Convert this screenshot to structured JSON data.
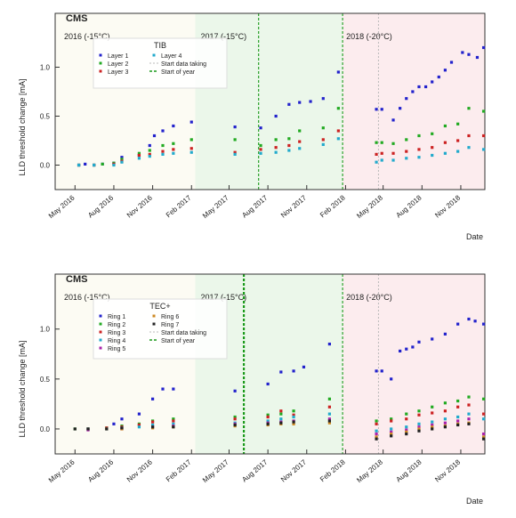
{
  "colors": {
    "period_2016_bg": "#fcfbf3",
    "period_2017_bg": "#ebf7ea",
    "period_2018_bg": "#fcecee",
    "frame": "#333333",
    "fit_line_dash": "#bbbbbb",
    "start_year_line": "#1a9a1a",
    "era_end_line": "#333333"
  },
  "chart_data": [
    {
      "id": "tib",
      "type": "scatter",
      "experiment_label": "CMS",
      "xlabel": "Date",
      "ylabel": "LLD threshold change [mA]",
      "ylim": [
        -0.25,
        1.55
      ],
      "yticks": [
        0.0,
        0.5,
        1.0
      ],
      "ytick_labels": [
        "0.0",
        "0.5",
        "1.0"
      ],
      "xlim": [
        "2016-03-15",
        "2018-12-28"
      ],
      "xticks": [
        "2016-05-01",
        "2016-08-01",
        "2016-11-01",
        "2017-02-01",
        "2017-05-01",
        "2017-08-01",
        "2017-11-01",
        "2018-02-01",
        "2018-05-01",
        "2018-08-01",
        "2018-11-01"
      ],
      "xtick_labels": [
        "May 2016",
        "Aug 2016",
        "Nov 2016",
        "Feb 2017",
        "May 2017",
        "Aug 2017",
        "Nov 2017",
        "Feb 2018",
        "May 2018",
        "Aug 2018",
        "Nov 2018"
      ],
      "periods": [
        {
          "label": "2016 (-15°C)",
          "start": "2016-03-15",
          "end": "2017-02-10"
        },
        {
          "label": "2017 (-15°C)",
          "start": "2017-02-10",
          "end": "2018-01-25"
        },
        {
          "label": "2018 (-20°C)",
          "start": "2018-01-25",
          "end": "2018-12-28"
        }
      ],
      "vlines": [
        {
          "date": "2017-07-10",
          "style": "green-dash"
        },
        {
          "date": "2018-01-25",
          "style": "green-dash"
        }
      ],
      "legend": {
        "title": "TIB",
        "entries": [
          "Layer 1",
          "Layer 2",
          "Layer 3",
          "Layer 4",
          "Start data taking",
          "Start of year"
        ],
        "placement": "top-left"
      },
      "series": [
        {
          "name": "Layer 1",
          "color": "#2222cc",
          "x": [
            "2016-05-10",
            "2016-05-25",
            "2016-06-15",
            "2016-07-05",
            "2016-08-01",
            "2016-08-20",
            "2016-09-30",
            "2016-10-25",
            "2016-11-05",
            "2016-11-25",
            "2016-12-20",
            "2017-02-01",
            "2017-05-15",
            "2017-07-15",
            "2017-08-20",
            "2017-09-20",
            "2017-10-15",
            "2017-11-10",
            "2017-12-10",
            "2018-01-15",
            "2018-04-15",
            "2018-04-28",
            "2018-05-25",
            "2018-06-10",
            "2018-06-25",
            "2018-07-10",
            "2018-07-25",
            "2018-08-10",
            "2018-08-25",
            "2018-09-10",
            "2018-09-25",
            "2018-10-10",
            "2018-11-05",
            "2018-11-20",
            "2018-12-10",
            "2018-12-25"
          ],
          "values": [
            0.0,
            0.01,
            0.0,
            0.01,
            0.02,
            0.08,
            0.1,
            0.2,
            0.3,
            0.35,
            0.4,
            0.44,
            0.39,
            0.38,
            0.5,
            0.62,
            0.64,
            0.65,
            0.68,
            0.95,
            0.57,
            0.57,
            0.46,
            0.58,
            0.68,
            0.75,
            0.8,
            0.8,
            0.85,
            0.9,
            0.97,
            1.05,
            1.15,
            1.13,
            1.1,
            1.2
          ]
        },
        {
          "name": "Layer 2",
          "color": "#22aa22",
          "x": [
            "2016-05-10",
            "2016-06-15",
            "2016-07-05",
            "2016-08-01",
            "2016-08-20",
            "2016-09-30",
            "2016-10-25",
            "2016-11-25",
            "2016-12-20",
            "2017-02-01",
            "2017-05-15",
            "2017-07-15",
            "2017-08-20",
            "2017-09-20",
            "2017-10-15",
            "2017-12-10",
            "2018-01-15",
            "2018-04-15",
            "2018-04-28",
            "2018-05-25",
            "2018-06-25",
            "2018-07-25",
            "2018-08-25",
            "2018-09-25",
            "2018-10-25",
            "2018-11-20",
            "2018-12-25"
          ],
          "values": [
            0.0,
            0.0,
            0.01,
            0.02,
            0.06,
            0.12,
            0.15,
            0.2,
            0.22,
            0.26,
            0.26,
            0.2,
            0.26,
            0.27,
            0.35,
            0.38,
            0.58,
            0.23,
            0.23,
            0.22,
            0.26,
            0.3,
            0.32,
            0.4,
            0.42,
            0.58,
            0.55
          ]
        },
        {
          "name": "Layer 3",
          "color": "#cc2222",
          "x": [
            "2016-05-10",
            "2016-06-15",
            "2016-08-01",
            "2016-08-20",
            "2016-09-30",
            "2016-10-25",
            "2016-11-25",
            "2016-12-20",
            "2017-02-01",
            "2017-05-15",
            "2017-07-15",
            "2017-08-20",
            "2017-09-20",
            "2017-10-15",
            "2017-12-10",
            "2018-01-15",
            "2018-04-15",
            "2018-04-28",
            "2018-05-25",
            "2018-06-25",
            "2018-07-25",
            "2018-08-25",
            "2018-09-25",
            "2018-10-25",
            "2018-11-20",
            "2018-12-25"
          ],
          "values": [
            0.0,
            0.0,
            0.01,
            0.04,
            0.1,
            0.11,
            0.14,
            0.16,
            0.17,
            0.13,
            0.16,
            0.18,
            0.2,
            0.24,
            0.26,
            0.35,
            0.11,
            0.12,
            0.12,
            0.14,
            0.16,
            0.18,
            0.23,
            0.25,
            0.3,
            0.3
          ]
        },
        {
          "name": "Layer 4",
          "color": "#22aacc",
          "x": [
            "2016-05-10",
            "2016-06-15",
            "2016-08-01",
            "2016-08-20",
            "2016-09-30",
            "2016-10-25",
            "2016-11-25",
            "2016-12-20",
            "2017-02-01",
            "2017-05-15",
            "2017-07-15",
            "2017-08-20",
            "2017-09-20",
            "2017-10-15",
            "2017-12-10",
            "2018-01-15",
            "2018-04-15",
            "2018-04-28",
            "2018-05-25",
            "2018-06-25",
            "2018-07-25",
            "2018-08-25",
            "2018-09-25",
            "2018-10-25",
            "2018-11-20",
            "2018-12-25"
          ],
          "values": [
            0.0,
            0.0,
            0.0,
            0.03,
            0.07,
            0.09,
            0.11,
            0.12,
            0.13,
            0.11,
            0.12,
            0.13,
            0.15,
            0.17,
            0.21,
            0.27,
            0.03,
            0.05,
            0.05,
            0.07,
            0.08,
            0.1,
            0.12,
            0.14,
            0.18,
            0.16
          ]
        }
      ]
    },
    {
      "id": "tec",
      "type": "scatter",
      "experiment_label": "CMS",
      "xlabel": "Date",
      "ylabel": "LLD threshold change [mA]",
      "ylim": [
        -0.25,
        1.55
      ],
      "yticks": [
        0.0,
        0.5,
        1.0
      ],
      "ytick_labels": [
        "0.0",
        "0.5",
        "1.0"
      ],
      "xlim": [
        "2016-03-15",
        "2018-12-28"
      ],
      "xticks": [
        "2016-05-01",
        "2016-08-01",
        "2016-11-01",
        "2017-02-01",
        "2017-05-01",
        "2017-08-01",
        "2017-11-01",
        "2018-02-01",
        "2018-05-01",
        "2018-08-01",
        "2018-11-01"
      ],
      "xtick_labels": [
        "May 2016",
        "Aug 2016",
        "Nov 2016",
        "Feb 2017",
        "May 2017",
        "Aug 2017",
        "Nov 2017",
        "Feb 2018",
        "May 2018",
        "Aug 2018",
        "Nov 2018"
      ],
      "periods": [
        {
          "label": "2016 (-15°C)",
          "start": "2016-03-15",
          "end": "2017-02-10"
        },
        {
          "label": "2017 (-15°C)",
          "start": "2017-02-10",
          "end": "2018-01-25"
        },
        {
          "label": "2018 (-20°C)",
          "start": "2018-01-25",
          "end": "2018-12-28"
        }
      ],
      "vlines": [
        {
          "date": "2017-06-05",
          "style": "green-dash"
        },
        {
          "date": "2018-01-25",
          "style": "green-dash"
        }
      ],
      "legend": {
        "title": "TEC+",
        "entries": [
          "Ring 1",
          "Ring 2",
          "Ring 3",
          "Ring 4",
          "Ring 5",
          "Ring 6",
          "Ring 7",
          "Start data taking",
          "Start of year"
        ],
        "placement": "top-left"
      },
      "series": [
        {
          "name": "Ring 1",
          "color": "#2222cc",
          "x": [
            "2016-08-01",
            "2016-08-20",
            "2016-09-30",
            "2016-11-01",
            "2016-11-25",
            "2016-12-20",
            "2017-05-15",
            "2017-08-01",
            "2017-09-01",
            "2017-10-01",
            "2017-10-25",
            "2017-12-25",
            "2018-04-15",
            "2018-04-28",
            "2018-05-20",
            "2018-06-10",
            "2018-06-25",
            "2018-07-10",
            "2018-07-25",
            "2018-08-25",
            "2018-09-25",
            "2018-10-25",
            "2018-11-20",
            "2018-12-05",
            "2018-12-25"
          ],
          "values": [
            0.05,
            0.1,
            0.15,
            0.3,
            0.4,
            0.4,
            0.38,
            0.45,
            0.57,
            0.58,
            0.62,
            0.85,
            0.58,
            0.58,
            0.5,
            0.78,
            0.8,
            0.82,
            0.87,
            0.9,
            0.95,
            1.05,
            1.1,
            1.08,
            1.05
          ]
        },
        {
          "name": "Ring 2",
          "color": "#22aa22",
          "x": [
            "2016-05-01",
            "2016-06-01",
            "2016-07-15",
            "2016-08-20",
            "2016-09-30",
            "2016-11-01",
            "2016-12-20",
            "2017-05-15",
            "2017-08-01",
            "2017-09-01",
            "2017-10-01",
            "2017-12-25",
            "2018-04-15",
            "2018-05-20",
            "2018-06-25",
            "2018-07-25",
            "2018-08-25",
            "2018-09-25",
            "2018-10-25",
            "2018-11-20",
            "2018-12-25"
          ],
          "values": [
            0.0,
            0.0,
            0.01,
            0.03,
            0.05,
            0.08,
            0.1,
            0.12,
            0.14,
            0.15,
            0.18,
            0.3,
            0.08,
            0.1,
            0.15,
            0.18,
            0.22,
            0.26,
            0.28,
            0.32,
            0.3
          ]
        },
        {
          "name": "Ring 3",
          "color": "#cc2222",
          "x": [
            "2016-06-01",
            "2016-07-15",
            "2016-08-20",
            "2016-09-30",
            "2016-11-01",
            "2016-12-20",
            "2017-05-15",
            "2017-08-01",
            "2017-09-01",
            "2017-10-01",
            "2017-12-25",
            "2018-04-15",
            "2018-05-20",
            "2018-06-25",
            "2018-07-25",
            "2018-08-25",
            "2018-09-25",
            "2018-10-25",
            "2018-11-20",
            "2018-12-25"
          ],
          "values": [
            0.0,
            0.01,
            0.02,
            0.04,
            0.07,
            0.08,
            0.1,
            0.12,
            0.18,
            0.14,
            0.22,
            0.05,
            0.08,
            0.1,
            0.14,
            0.16,
            0.18,
            0.22,
            0.24,
            0.15
          ]
        },
        {
          "name": "Ring 4",
          "color": "#22aacc",
          "x": [
            "2016-06-01",
            "2016-07-15",
            "2016-08-20",
            "2016-09-30",
            "2016-11-01",
            "2016-12-20",
            "2017-05-15",
            "2017-08-01",
            "2017-09-01",
            "2017-10-01",
            "2017-12-25",
            "2018-04-15",
            "2018-05-20",
            "2018-06-25",
            "2018-07-25",
            "2018-08-25",
            "2018-09-25",
            "2018-10-25",
            "2018-11-20",
            "2018-12-25"
          ],
          "values": [
            0.0,
            0.0,
            0.01,
            0.02,
            0.04,
            0.05,
            0.06,
            0.08,
            0.1,
            0.12,
            0.15,
            -0.02,
            0.0,
            0.02,
            0.05,
            0.07,
            0.1,
            0.12,
            0.15,
            0.1
          ]
        },
        {
          "name": "Ring 5",
          "color": "#aa22aa",
          "x": [
            "2016-06-01",
            "2016-08-20",
            "2016-11-01",
            "2016-12-20",
            "2017-05-15",
            "2017-08-01",
            "2017-09-01",
            "2017-10-01",
            "2017-12-25",
            "2018-04-15",
            "2018-05-20",
            "2018-06-25",
            "2018-07-25",
            "2018-08-25",
            "2018-09-25",
            "2018-10-25",
            "2018-11-20",
            "2018-12-25"
          ],
          "values": [
            -0.01,
            0.0,
            0.02,
            0.03,
            0.05,
            0.06,
            0.07,
            0.08,
            0.1,
            -0.05,
            -0.03,
            -0.01,
            0.02,
            0.04,
            0.06,
            0.08,
            0.1,
            -0.05
          ]
        },
        {
          "name": "Ring 6",
          "color": "#cc8822",
          "x": [
            "2016-07-15",
            "2016-08-20",
            "2016-11-01",
            "2016-12-20",
            "2017-05-15",
            "2017-08-01",
            "2017-09-01",
            "2017-10-01",
            "2017-12-25",
            "2018-04-15",
            "2018-05-20",
            "2018-06-25",
            "2018-07-25",
            "2018-08-25",
            "2018-09-25",
            "2018-10-25",
            "2018-11-20",
            "2018-12-25"
          ],
          "values": [
            0.0,
            0.0,
            0.01,
            0.02,
            0.03,
            0.04,
            0.05,
            0.05,
            0.06,
            -0.08,
            -0.05,
            -0.03,
            0.0,
            0.02,
            0.03,
            0.05,
            0.06,
            -0.08
          ]
        },
        {
          "name": "Ring 7",
          "color": "#222222",
          "x": [
            "2016-05-01",
            "2016-06-01",
            "2016-07-15",
            "2016-08-20",
            "2016-11-01",
            "2016-12-20",
            "2017-05-15",
            "2017-08-01",
            "2017-09-01",
            "2017-10-01",
            "2017-12-25",
            "2018-04-15",
            "2018-05-20",
            "2018-06-25",
            "2018-07-25",
            "2018-08-25",
            "2018-09-25",
            "2018-10-25",
            "2018-11-20",
            "2018-12-25"
          ],
          "values": [
            0.0,
            0.0,
            0.0,
            0.01,
            0.02,
            0.02,
            0.04,
            0.05,
            0.06,
            0.07,
            0.08,
            -0.1,
            -0.07,
            -0.05,
            -0.02,
            0.0,
            0.02,
            0.04,
            0.05,
            -0.1
          ]
        }
      ]
    }
  ]
}
